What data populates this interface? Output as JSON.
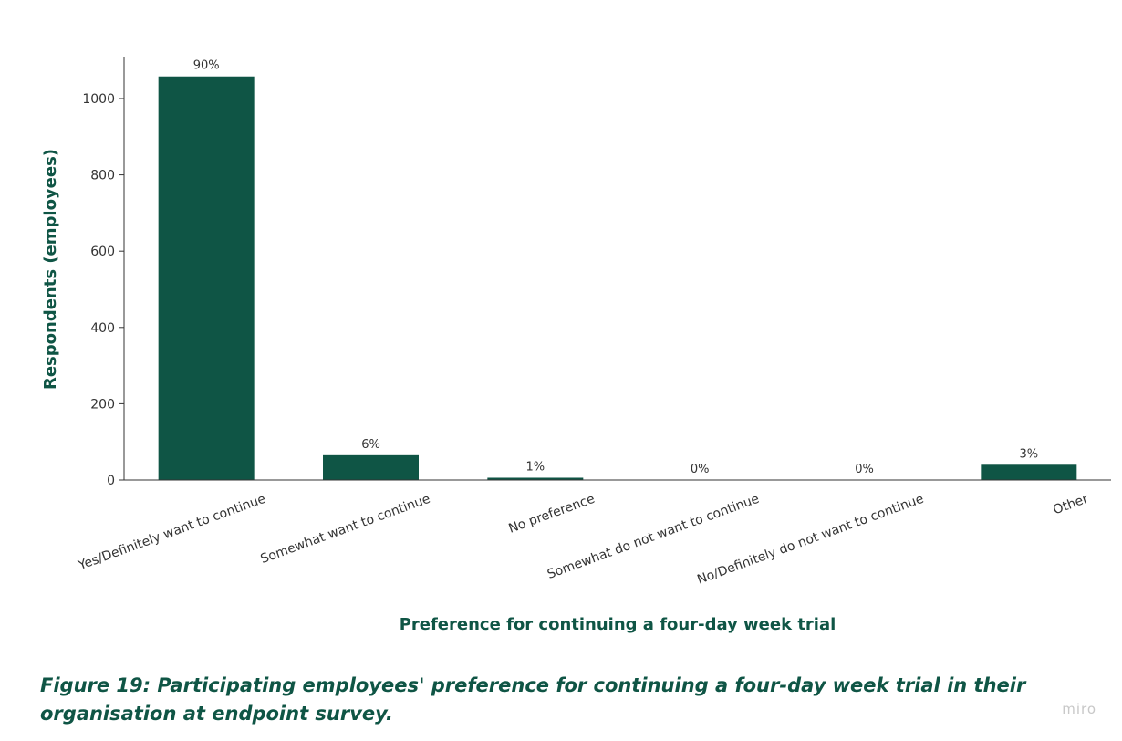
{
  "chart_data": {
    "type": "bar",
    "categories": [
      "Yes/Definitely want to continue",
      "Somewhat want to continue",
      "No preference",
      "Somewhat do not want to continue",
      "No/Definitely do not want to continue",
      "Other"
    ],
    "values": [
      1058,
      65,
      6,
      0,
      0,
      40
    ],
    "data_labels": [
      "90%",
      "6%",
      "1%",
      "0%",
      "0%",
      "3%"
    ],
    "xlabel": "Preference for continuing a four-day week trial",
    "ylabel": "Respondents (employees)",
    "ylim": [
      0,
      1110
    ],
    "yticks": [
      0,
      200,
      400,
      600,
      800,
      1000
    ],
    "bar_color": "#0f5545",
    "title_color": "#0f5545",
    "grid": false
  },
  "caption": "Figure 19: Participating employees' preference for continuing a four-day week trial in their organisation at endpoint survey.",
  "watermark": "miro"
}
